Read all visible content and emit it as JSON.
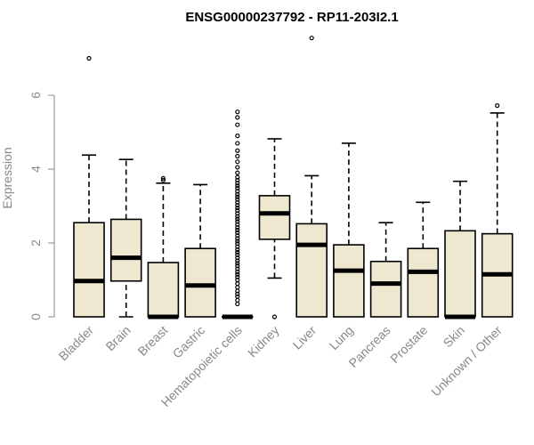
{
  "chart_data": {
    "type": "boxplot",
    "title": "ENSG00000237792 - RP11-203I2.1",
    "ylabel": "Expression",
    "ylim": [
      0,
      7.6
    ],
    "yticks": [
      0,
      2,
      4,
      6
    ],
    "grid": false,
    "legend": "none",
    "box_color": "#efe8d0",
    "categories": [
      "Bladder",
      "Brain",
      "Breast",
      "Gastric",
      "Hematopoietic cells",
      "Kidney",
      "Liver",
      "Lung",
      "Pancreas",
      "Prostate",
      "Skin",
      "Unknown / Other"
    ],
    "boxes": [
      {
        "min": 0,
        "q1": 0,
        "median": 0.97,
        "q3": 2.55,
        "max": 4.38,
        "outliers": [
          7.0
        ]
      },
      {
        "min": 0,
        "q1": 0.97,
        "median": 1.6,
        "q3": 2.64,
        "max": 4.26,
        "outliers": []
      },
      {
        "min": 0,
        "q1": 0,
        "median": 0,
        "q3": 1.47,
        "max": 3.62,
        "outliers": [
          3.7,
          3.75
        ]
      },
      {
        "min": 0,
        "q1": 0,
        "median": 0.85,
        "q3": 1.85,
        "max": 3.58,
        "outliers": []
      },
      {
        "min": 0,
        "q1": 0,
        "median": 0,
        "q3": 0,
        "max": 0,
        "outliers": [
          0.35,
          0.45,
          0.55,
          0.62,
          0.7,
          0.8,
          0.9,
          1.0,
          1.08,
          1.15,
          1.22,
          1.3,
          1.38,
          1.45,
          1.52,
          1.6,
          1.68,
          1.75,
          1.82,
          1.9,
          1.98,
          2.05,
          2.12,
          2.2,
          2.28,
          2.35,
          2.42,
          2.5,
          2.58,
          2.65,
          2.72,
          2.8,
          2.88,
          2.95,
          3.02,
          3.1,
          3.18,
          3.25,
          3.32,
          3.4,
          3.48,
          3.55,
          3.62,
          3.7,
          3.78,
          3.9,
          4.05,
          4.2,
          4.35,
          4.5,
          4.7,
          4.9,
          5.2,
          5.4,
          5.55
        ]
      },
      {
        "min": 1.05,
        "q1": 2.1,
        "median": 2.8,
        "q3": 3.28,
        "max": 4.82,
        "outliers": [
          0
        ]
      },
      {
        "min": 0,
        "q1": 0,
        "median": 1.95,
        "q3": 2.52,
        "max": 3.82,
        "outliers": [
          7.55
        ]
      },
      {
        "min": 0,
        "q1": 0,
        "median": 1.25,
        "q3": 1.95,
        "max": 4.7,
        "outliers": []
      },
      {
        "min": 0,
        "q1": 0,
        "median": 0.9,
        "q3": 1.5,
        "max": 2.55,
        "outliers": []
      },
      {
        "min": 0,
        "q1": 0,
        "median": 1.22,
        "q3": 1.85,
        "max": 3.1,
        "outliers": []
      },
      {
        "min": 0,
        "q1": 0,
        "median": 0,
        "q3": 2.33,
        "max": 3.67,
        "outliers": []
      },
      {
        "min": 0,
        "q1": 0,
        "median": 1.15,
        "q3": 2.25,
        "max": 5.52,
        "outliers": [
          5.72
        ]
      }
    ]
  }
}
